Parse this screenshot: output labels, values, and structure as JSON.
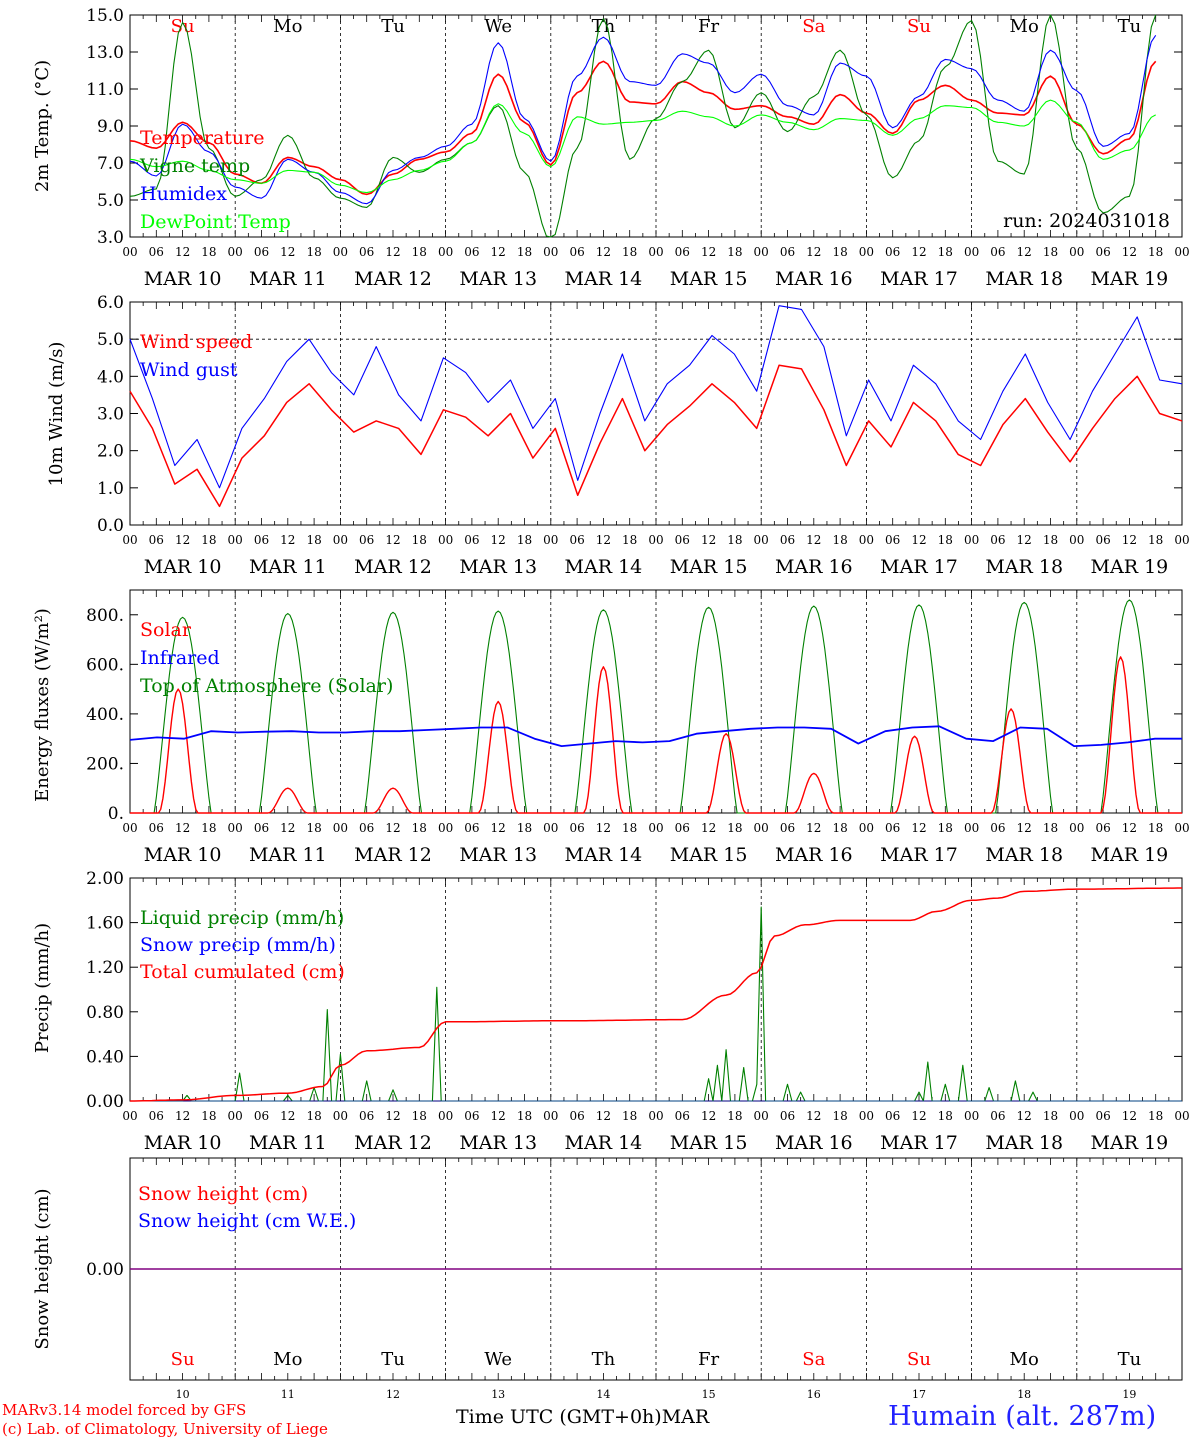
{
  "run_label": "run: 2024031018",
  "footer": {
    "credit_line1": "MARv3.14 model forced by GFS",
    "credit_line2": "(c) Lab. of Climatology, University of Liege",
    "x_axis_title": "Time UTC (GMT+0h)",
    "month": "MAR",
    "station": "Humain (alt. 287m)"
  },
  "colors": {
    "red": "#ff0000",
    "blue": "#0000ff",
    "green": "#008000",
    "lightgreen": "#00ff00",
    "purple": "#800080",
    "black": "#000000"
  },
  "time_axis": {
    "hour_ticks": [
      "00",
      "06",
      "12",
      "18"
    ],
    "final_tick": "00",
    "dates": [
      "MAR 10",
      "MAR 11",
      "MAR 12",
      "MAR 13",
      "MAR 14",
      "MAR 15",
      "MAR 16",
      "MAR 17",
      "MAR 18",
      "MAR 19"
    ],
    "day_numbers": [
      "10",
      "11",
      "12",
      "13",
      "14",
      "15",
      "16",
      "17",
      "18",
      "19"
    ],
    "weekdays": [
      "Su",
      "Mo",
      "Tu",
      "We",
      "Th",
      "Fr",
      "Sa",
      "Su",
      "Mo",
      "Tu"
    ],
    "weekday_colors": [
      "#ff0000",
      "#000000",
      "#000000",
      "#000000",
      "#000000",
      "#000000",
      "#ff0000",
      "#ff0000",
      "#000000",
      "#000000"
    ]
  },
  "chart_data": [
    {
      "type": "line",
      "ylabel": "2m Temp. (°C)",
      "ylim": [
        3,
        15
      ],
      "yticks": [
        "3.0",
        "5.0",
        "7.0",
        "9.0",
        "11.0",
        "13.0",
        "15.0"
      ],
      "x": [
        0,
        6,
        12,
        18,
        24,
        30,
        36,
        42,
        48,
        54,
        60,
        66,
        72,
        78,
        84,
        90,
        96,
        102,
        108,
        114,
        120,
        126,
        132,
        138,
        144,
        150,
        156,
        162,
        168,
        174,
        180,
        186,
        192,
        198,
        204,
        210,
        216,
        222,
        228,
        234
      ],
      "x_unit": "hours since MAR 10 00 UTC",
      "series": [
        {
          "name": "Temperature",
          "color": "#ff0000",
          "values": [
            8.2,
            7.8,
            9.2,
            8.1,
            6.4,
            5.9,
            7.3,
            6.8,
            6.1,
            5.3,
            6.4,
            7.2,
            7.6,
            8.6,
            11.8,
            9.2,
            6.9,
            10.8,
            12.5,
            10.3,
            10.2,
            11.4,
            10.8,
            9.9,
            10.1,
            9.5,
            9.1,
            10.7,
            9.7,
            8.6,
            10.4,
            11.2,
            10.4,
            9.7,
            9.6,
            11.7,
            9.1,
            7.5,
            8.3,
            12.5
          ]
        },
        {
          "name": "Vigne temp",
          "color": "#008000",
          "values": [
            5.2,
            5.6,
            14.6,
            7.8,
            5.2,
            6.1,
            8.5,
            6.2,
            5.1,
            4.6,
            7.3,
            6.5,
            7.2,
            8.1,
            10.1,
            6.5,
            2.8,
            7.8,
            14.8,
            7.2,
            9.4,
            11.4,
            13.1,
            8.9,
            10.8,
            8.7,
            10.6,
            13.1,
            9.6,
            6.2,
            8.2,
            12.2,
            14.7,
            7.1,
            6.4,
            15.0,
            7.8,
            4.3,
            5.2,
            15.0
          ]
        },
        {
          "name": "Humidex",
          "color": "#0000ff",
          "values": [
            7.1,
            6.3,
            9.1,
            7.6,
            5.7,
            5.1,
            7.2,
            6.5,
            5.4,
            4.8,
            6.6,
            7.3,
            7.9,
            9.1,
            13.5,
            9.4,
            7.1,
            11.7,
            13.8,
            11.4,
            11.2,
            12.9,
            12.4,
            10.8,
            11.8,
            10.1,
            9.6,
            12.4,
            11.7,
            8.9,
            10.6,
            12.6,
            12.1,
            10.4,
            9.8,
            13.1,
            10.9,
            7.9,
            8.6,
            13.9
          ]
        },
        {
          "name": "DewPoint Temp",
          "color": "#00ff00",
          "values": [
            7.2,
            6.8,
            7.1,
            6.6,
            6.1,
            5.9,
            6.6,
            6.5,
            5.8,
            5.4,
            6.1,
            6.6,
            7.1,
            8.1,
            10.2,
            8.6,
            6.8,
            9.5,
            9.1,
            9.2,
            9.3,
            9.8,
            9.5,
            9.0,
            9.6,
            9.2,
            8.8,
            9.4,
            9.3,
            8.5,
            9.4,
            10.1,
            10.0,
            9.2,
            9.0,
            10.4,
            9.2,
            7.2,
            7.7,
            9.6
          ]
        }
      ]
    },
    {
      "type": "line",
      "ylabel": "10m Wind (m/s)",
      "ylim": [
        0,
        6
      ],
      "yticks": [
        "0.0",
        "1.0",
        "2.0",
        "3.0",
        "4.0",
        "5.0",
        "6.0"
      ],
      "x_unit": "hours since MAR 10 00 UTC",
      "series": [
        {
          "name": "Wind speed",
          "color": "#ff0000",
          "values": [
            3.6,
            2.6,
            1.1,
            1.5,
            0.5,
            1.8,
            2.4,
            3.3,
            3.8,
            3.1,
            2.5,
            2.8,
            2.6,
            1.9,
            3.1,
            2.9,
            2.4,
            3.0,
            1.8,
            2.6,
            0.8,
            2.2,
            3.4,
            2.0,
            2.7,
            3.2,
            3.8,
            3.3,
            2.6,
            4.3,
            4.2,
            3.1,
            1.6,
            2.8,
            2.1,
            3.3,
            2.8,
            1.9,
            1.6,
            2.7,
            3.4,
            2.5,
            1.7,
            2.6,
            3.4,
            4.0,
            3.0,
            2.8
          ]
        },
        {
          "name": "Wind gust",
          "color": "#0000ff",
          "values": [
            5.0,
            3.4,
            1.6,
            2.3,
            1.0,
            2.6,
            3.4,
            4.4,
            5.0,
            4.1,
            3.5,
            4.8,
            3.5,
            2.8,
            4.5,
            4.1,
            3.3,
            3.9,
            2.6,
            3.4,
            1.2,
            3.0,
            4.6,
            2.8,
            3.8,
            4.3,
            5.1,
            4.6,
            3.6,
            5.9,
            5.8,
            4.8,
            2.4,
            3.9,
            2.8,
            4.3,
            3.8,
            2.8,
            2.3,
            3.6,
            4.6,
            3.3,
            2.3,
            3.6,
            4.6,
            5.6,
            3.9,
            3.8
          ]
        }
      ]
    },
    {
      "type": "line",
      "ylabel": "Energy fluxes (W/m²)",
      "ylim": [
        0,
        900
      ],
      "yticks": [
        "0.",
        "200.",
        "400.",
        "600.",
        "800."
      ],
      "x_unit": "hours since MAR 10 00 UTC",
      "series": [
        {
          "name": "Solar",
          "color": "#ff0000",
          "peaks": [
            [
              11,
              500
            ],
            [
              36,
              100
            ],
            [
              60,
              100
            ],
            [
              84,
              450
            ],
            [
              108,
              590
            ],
            [
              136,
              320
            ],
            [
              156,
              160
            ],
            [
              179,
              310
            ],
            [
              201,
              420
            ],
            [
              226,
              630
            ]
          ]
        },
        {
          "name": "Infrared",
          "color": "#0000ff",
          "values": [
            295,
            305,
            300,
            330,
            325,
            328,
            330,
            325,
            325,
            330,
            330,
            335,
            340,
            345,
            345,
            300,
            270,
            280,
            290,
            285,
            290,
            320,
            330,
            340,
            345,
            345,
            340,
            280,
            330,
            345,
            350,
            300,
            290,
            345,
            340,
            270,
            275,
            285,
            300,
            300
          ]
        },
        {
          "name": "Top of Atmosphere (Solar)",
          "color": "#008000",
          "peaks": [
            [
              12,
              790
            ],
            [
              36,
              805
            ],
            [
              60,
              810
            ],
            [
              84,
              815
            ],
            [
              108,
              820
            ],
            [
              132,
              830
            ],
            [
              156,
              835
            ],
            [
              180,
              840
            ],
            [
              204,
              850
            ],
            [
              228,
              860
            ]
          ]
        }
      ]
    },
    {
      "type": "line",
      "ylabel": "Precip (mm/h)",
      "ylim": [
        0,
        2
      ],
      "yticks": [
        "0.00",
        "0.40",
        "0.80",
        "1.20",
        "1.60",
        "2.00"
      ],
      "x_unit": "hours since MAR 10 00 UTC",
      "series": [
        {
          "name": "Liquid precip (mm/h)",
          "color": "#008000",
          "spikes": [
            [
              13,
              0.05
            ],
            [
              25,
              0.25
            ],
            [
              36,
              0.05
            ],
            [
              42,
              0.12
            ],
            [
              45,
              0.82
            ],
            [
              48,
              0.42
            ],
            [
              54,
              0.18
            ],
            [
              60,
              0.1
            ],
            [
              70,
              1.02
            ],
            [
              132,
              0.2
            ],
            [
              134,
              0.32
            ],
            [
              136,
              0.46
            ],
            [
              140,
              0.3
            ],
            [
              143,
              0.15
            ],
            [
              144,
              1.74
            ],
            [
              150,
              0.15
            ],
            [
              153,
              0.08
            ],
            [
              180,
              0.08
            ],
            [
              182,
              0.35
            ],
            [
              186,
              0.15
            ],
            [
              190,
              0.32
            ],
            [
              196,
              0.12
            ],
            [
              202,
              0.18
            ],
            [
              206,
              0.08
            ]
          ]
        },
        {
          "name": "Snow precip (mm/h)",
          "color": "#0000ff",
          "spikes": []
        },
        {
          "name": "Total cumulated (cm)",
          "color": "#ff0000",
          "points": [
            [
              0,
              0.0
            ],
            [
              12,
              0.01
            ],
            [
              24,
              0.05
            ],
            [
              36,
              0.07
            ],
            [
              44,
              0.13
            ],
            [
              48,
              0.32
            ],
            [
              54,
              0.45
            ],
            [
              66,
              0.48
            ],
            [
              72,
              0.71
            ],
            [
              100,
              0.72
            ],
            [
              126,
              0.73
            ],
            [
              136,
              0.95
            ],
            [
              143,
              1.15
            ],
            [
              147,
              1.48
            ],
            [
              154,
              1.58
            ],
            [
              162,
              1.62
            ],
            [
              178,
              1.62
            ],
            [
              184,
              1.7
            ],
            [
              192,
              1.8
            ],
            [
              198,
              1.82
            ],
            [
              204,
              1.88
            ],
            [
              216,
              1.9
            ],
            [
              240,
              1.91
            ]
          ]
        }
      ]
    },
    {
      "type": "line",
      "ylabel": "Snow height (cm)",
      "ylim": [
        -1,
        1
      ],
      "yticks": [
        "0.00"
      ],
      "x_unit": "hours since MAR 10 00 UTC",
      "series": [
        {
          "name": "Snow height (cm)",
          "color": "#ff0000",
          "values": [
            0,
            0
          ]
        },
        {
          "name": "Snow height (cm W.E.)",
          "color": "#0000ff",
          "values": [
            0,
            0
          ]
        }
      ]
    }
  ]
}
